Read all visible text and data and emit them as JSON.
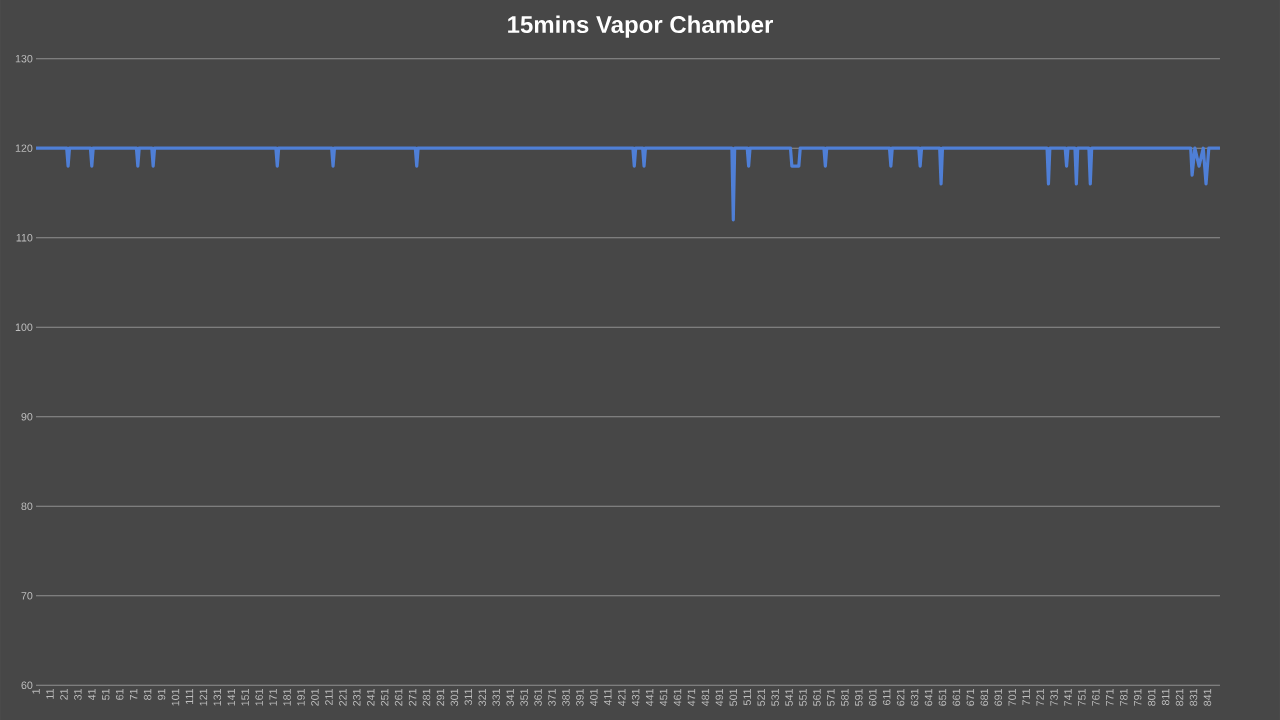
{
  "chart_data": {
    "type": "line",
    "title": "15mins Vapor Chamber",
    "x": [
      1,
      23,
      24,
      25,
      40,
      41,
      42,
      73,
      74,
      75,
      84,
      85,
      86,
      173,
      174,
      175,
      213,
      214,
      215,
      273,
      274,
      275,
      429,
      430,
      431,
      436,
      437,
      438,
      500,
      501,
      502,
      511,
      512,
      513,
      542,
      543,
      548,
      549,
      566,
      567,
      568,
      613,
      614,
      615,
      634,
      635,
      636,
      649,
      650,
      651,
      726,
      727,
      728,
      739,
      740,
      741,
      746,
      747,
      748,
      756,
      757,
      758,
      829,
      830,
      832,
      835,
      838,
      840,
      842,
      850
    ],
    "values": [
      120,
      120,
      118,
      120,
      120,
      118,
      120,
      120,
      118,
      120,
      120,
      118,
      120,
      120,
      118,
      120,
      120,
      118,
      120,
      120,
      118,
      120,
      120,
      118,
      120,
      120,
      118,
      120,
      120,
      112,
      120,
      120,
      118,
      120,
      120,
      118,
      118,
      120,
      120,
      118,
      120,
      120,
      118,
      120,
      120,
      118,
      120,
      120,
      116,
      120,
      120,
      116,
      120,
      120,
      118,
      120,
      120,
      116,
      120,
      120,
      116,
      120,
      120,
      117,
      120,
      118,
      120,
      116,
      120,
      120
    ],
    "color": "#4f7fd6",
    "xlim": [
      1,
      850
    ],
    "ylim": [
      60,
      130
    ],
    "xticks": [
      1,
      11,
      21,
      31,
      41,
      51,
      61,
      71,
      81,
      91,
      101,
      111,
      121,
      131,
      141,
      151,
      161,
      171,
      181,
      191,
      201,
      211,
      221,
      231,
      241,
      251,
      261,
      271,
      281,
      291,
      301,
      311,
      321,
      331,
      341,
      351,
      361,
      371,
      381,
      391,
      401,
      411,
      421,
      431,
      441,
      451,
      461,
      471,
      481,
      491,
      501,
      511,
      521,
      531,
      541,
      551,
      561,
      571,
      581,
      591,
      601,
      611,
      621,
      631,
      641,
      651,
      661,
      671,
      681,
      691,
      701,
      711,
      721,
      731,
      741,
      751,
      761,
      771,
      781,
      791,
      801,
      811,
      821,
      831,
      841
    ],
    "yticks": [
      60,
      70,
      80,
      90,
      100,
      110,
      120,
      130
    ],
    "grid": "y",
    "marker": "none",
    "line_style": "solid"
  }
}
